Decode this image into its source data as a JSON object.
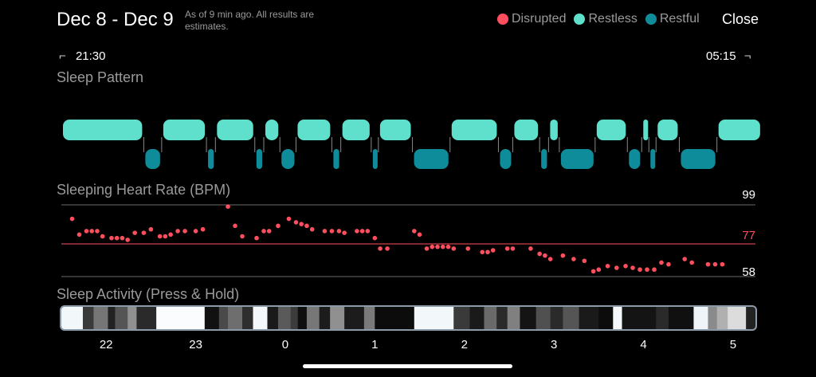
{
  "header": {
    "title": "Dec 8 - Dec 9",
    "note": "As of 9 min ago. All results are estimates.",
    "close_label": "Close"
  },
  "legend": [
    {
      "label": "Disrupted",
      "color": "#ff4f5f"
    },
    {
      "label": "Restless",
      "color": "#5fe0cc"
    },
    {
      "label": "Restful",
      "color": "#0e8c99"
    }
  ],
  "time_range": {
    "start": "21:30",
    "end": "05:15"
  },
  "sleep_pattern": {
    "title": "Sleep Pattern",
    "restless_color": "#5fe0cc",
    "restful_color": "#0e8c99",
    "segments": [
      {
        "state": "restless",
        "start": 21.5,
        "end": 22.42
      },
      {
        "state": "restful",
        "start": 22.42,
        "end": 22.62
      },
      {
        "state": "restless",
        "start": 22.62,
        "end": 23.12
      },
      {
        "state": "restful",
        "start": 23.12,
        "end": 23.22
      },
      {
        "state": "restless",
        "start": 23.22,
        "end": 23.66
      },
      {
        "state": "restful",
        "start": 23.66,
        "end": 23.76
      },
      {
        "state": "restless",
        "start": 23.76,
        "end": 23.94
      },
      {
        "state": "restful",
        "start": 23.94,
        "end": 24.12
      },
      {
        "state": "restless",
        "start": 24.12,
        "end": 24.52
      },
      {
        "state": "restful",
        "start": 24.52,
        "end": 24.62
      },
      {
        "state": "restless",
        "start": 24.62,
        "end": 24.96
      },
      {
        "state": "restful",
        "start": 24.96,
        "end": 25.04
      },
      {
        "state": "restless",
        "start": 25.04,
        "end": 25.42
      },
      {
        "state": "restful",
        "start": 25.42,
        "end": 25.84
      },
      {
        "state": "restless",
        "start": 25.84,
        "end": 26.38
      },
      {
        "state": "restful",
        "start": 26.38,
        "end": 26.54
      },
      {
        "state": "restless",
        "start": 26.54,
        "end": 26.84
      },
      {
        "state": "restful",
        "start": 26.84,
        "end": 26.94
      },
      {
        "state": "restless",
        "start": 26.94,
        "end": 27.06
      },
      {
        "state": "restful",
        "start": 27.06,
        "end": 27.46
      },
      {
        "state": "restless",
        "start": 27.46,
        "end": 27.82
      },
      {
        "state": "restful",
        "start": 27.82,
        "end": 27.98
      },
      {
        "state": "restless",
        "start": 27.98,
        "end": 28.06
      },
      {
        "state": "restful",
        "start": 28.06,
        "end": 28.14
      },
      {
        "state": "restless",
        "start": 28.14,
        "end": 28.4
      },
      {
        "state": "restful",
        "start": 28.4,
        "end": 28.82
      },
      {
        "state": "restless",
        "start": 28.82,
        "end": 29.32
      }
    ]
  },
  "heart_rate": {
    "title": "Sleeping Heart Rate (BPM)",
    "max_label": "99",
    "avg_label": "77",
    "min_label": "58",
    "max": 99,
    "avg": 77,
    "min": 58,
    "dot_color": "#ff4f5f",
    "points": [
      [
        21.62,
        91
      ],
      [
        21.7,
        82
      ],
      [
        21.78,
        84
      ],
      [
        21.84,
        84
      ],
      [
        21.9,
        84
      ],
      [
        21.96,
        81
      ],
      [
        22.06,
        80
      ],
      [
        22.12,
        80
      ],
      [
        22.18,
        80
      ],
      [
        22.24,
        79
      ],
      [
        22.32,
        83
      ],
      [
        22.42,
        83
      ],
      [
        22.5,
        85
      ],
      [
        22.6,
        81
      ],
      [
        22.66,
        81
      ],
      [
        22.72,
        82
      ],
      [
        22.8,
        84
      ],
      [
        22.88,
        84
      ],
      [
        23.0,
        84
      ],
      [
        23.08,
        85
      ],
      [
        23.36,
        98
      ],
      [
        23.44,
        87
      ],
      [
        23.52,
        81
      ],
      [
        23.68,
        80
      ],
      [
        23.76,
        84
      ],
      [
        23.82,
        84
      ],
      [
        23.92,
        87
      ],
      [
        24.04,
        91
      ],
      [
        24.12,
        89
      ],
      [
        24.18,
        88
      ],
      [
        24.24,
        87
      ],
      [
        24.3,
        85
      ],
      [
        24.44,
        84
      ],
      [
        24.52,
        84
      ],
      [
        24.6,
        84
      ],
      [
        24.66,
        83
      ],
      [
        24.8,
        84
      ],
      [
        24.86,
        84
      ],
      [
        24.92,
        84
      ],
      [
        25.0,
        80
      ],
      [
        25.06,
        74
      ],
      [
        25.14,
        74
      ],
      [
        25.44,
        84
      ],
      [
        25.5,
        82
      ],
      [
        25.58,
        74
      ],
      [
        25.64,
        75
      ],
      [
        25.7,
        75
      ],
      [
        25.76,
        75
      ],
      [
        25.82,
        75
      ],
      [
        25.88,
        74
      ],
      [
        26.04,
        74
      ],
      [
        26.2,
        72
      ],
      [
        26.26,
        72
      ],
      [
        26.32,
        73
      ],
      [
        26.48,
        74
      ],
      [
        26.54,
        74
      ],
      [
        26.74,
        74
      ],
      [
        26.84,
        71
      ],
      [
        26.9,
        70
      ],
      [
        26.96,
        68
      ],
      [
        27.1,
        70
      ],
      [
        27.22,
        68
      ],
      [
        27.34,
        67
      ],
      [
        27.44,
        61
      ],
      [
        27.5,
        62
      ],
      [
        27.6,
        64
      ],
      [
        27.7,
        63
      ],
      [
        27.8,
        64
      ],
      [
        27.88,
        63
      ],
      [
        27.96,
        62
      ],
      [
        28.04,
        62
      ],
      [
        28.12,
        62
      ],
      [
        28.2,
        66
      ],
      [
        28.28,
        65
      ],
      [
        28.46,
        68
      ],
      [
        28.54,
        66
      ],
      [
        28.72,
        65
      ],
      [
        28.8,
        65
      ],
      [
        28.88,
        65
      ]
    ]
  },
  "sleep_activity": {
    "title": "Sleep Activity (Press & Hold)",
    "blocks": [
      {
        "start": 21.5,
        "end": 21.74,
        "shade": "#f2f7fa"
      },
      {
        "start": 21.74,
        "end": 21.86,
        "shade": "#3a3a3a"
      },
      {
        "start": 21.86,
        "end": 22.02,
        "shade": "#767676"
      },
      {
        "start": 22.02,
        "end": 22.1,
        "shade": "#222222"
      },
      {
        "start": 22.1,
        "end": 22.24,
        "shade": "#555555"
      },
      {
        "start": 22.24,
        "end": 22.34,
        "shade": "#909090"
      },
      {
        "start": 22.34,
        "end": 22.56,
        "shade": "#2a2a2a"
      },
      {
        "start": 22.56,
        "end": 23.1,
        "shade": "#fafcfd"
      },
      {
        "start": 23.1,
        "end": 23.26,
        "shade": "#111111"
      },
      {
        "start": 23.26,
        "end": 23.36,
        "shade": "#4a4a4a"
      },
      {
        "start": 23.36,
        "end": 23.52,
        "shade": "#6e6e6e"
      },
      {
        "start": 23.52,
        "end": 23.64,
        "shade": "#2e2e2e"
      },
      {
        "start": 23.64,
        "end": 23.8,
        "shade": "#f4f8fa"
      },
      {
        "start": 23.8,
        "end": 23.92,
        "shade": "#1a1a1a"
      },
      {
        "start": 23.92,
        "end": 24.06,
        "shade": "#5a5a5a"
      },
      {
        "start": 24.06,
        "end": 24.14,
        "shade": "#3c3c3c"
      },
      {
        "start": 24.14,
        "end": 24.24,
        "shade": "#0f0f0f"
      },
      {
        "start": 24.24,
        "end": 24.38,
        "shade": "#777777"
      },
      {
        "start": 24.38,
        "end": 24.5,
        "shade": "#1c1c1c"
      },
      {
        "start": 24.5,
        "end": 24.66,
        "shade": "#909090"
      },
      {
        "start": 24.66,
        "end": 24.88,
        "shade": "#1c1c1c"
      },
      {
        "start": 24.88,
        "end": 25.0,
        "shade": "#7a7a7a"
      },
      {
        "start": 25.0,
        "end": 25.44,
        "shade": "#0c0c0c"
      },
      {
        "start": 25.44,
        "end": 25.88,
        "shade": "#f2f7fa"
      },
      {
        "start": 25.88,
        "end": 26.06,
        "shade": "#3a3a3a"
      },
      {
        "start": 26.06,
        "end": 26.22,
        "shade": "#1a1a1a"
      },
      {
        "start": 26.22,
        "end": 26.36,
        "shade": "#6a6a6a"
      },
      {
        "start": 26.36,
        "end": 26.48,
        "shade": "#2a2a2a"
      },
      {
        "start": 26.48,
        "end": 26.62,
        "shade": "#808080"
      },
      {
        "start": 26.62,
        "end": 26.8,
        "shade": "#141414"
      },
      {
        "start": 26.8,
        "end": 26.96,
        "shade": "#505050"
      },
      {
        "start": 26.96,
        "end": 27.1,
        "shade": "#2a2a2a"
      },
      {
        "start": 27.1,
        "end": 27.28,
        "shade": "#555555"
      },
      {
        "start": 27.28,
        "end": 27.5,
        "shade": "#1a1a1a"
      },
      {
        "start": 27.5,
        "end": 27.66,
        "shade": "#0c0c0c"
      },
      {
        "start": 27.66,
        "end": 27.76,
        "shade": "#f4f8fa"
      },
      {
        "start": 27.76,
        "end": 28.14,
        "shade": "#141414"
      },
      {
        "start": 28.14,
        "end": 28.28,
        "shade": "#2a2a2a"
      },
      {
        "start": 28.28,
        "end": 28.56,
        "shade": "#101010"
      },
      {
        "start": 28.56,
        "end": 28.72,
        "shade": "#eef4f7"
      },
      {
        "start": 28.72,
        "end": 28.82,
        "shade": "#8a8a8a"
      },
      {
        "start": 28.82,
        "end": 28.94,
        "shade": "#b0b0b0"
      },
      {
        "start": 28.94,
        "end": 29.14,
        "shade": "#dcdcdc"
      }
    ]
  },
  "hour_axis": [
    {
      "label": "22",
      "t": 22
    },
    {
      "label": "23",
      "t": 23
    },
    {
      "label": "0",
      "t": 24
    },
    {
      "label": "1",
      "t": 25
    },
    {
      "label": "2",
      "t": 26
    },
    {
      "label": "3",
      "t": 27
    },
    {
      "label": "4",
      "t": 28
    },
    {
      "label": "5",
      "t": 29
    }
  ]
}
